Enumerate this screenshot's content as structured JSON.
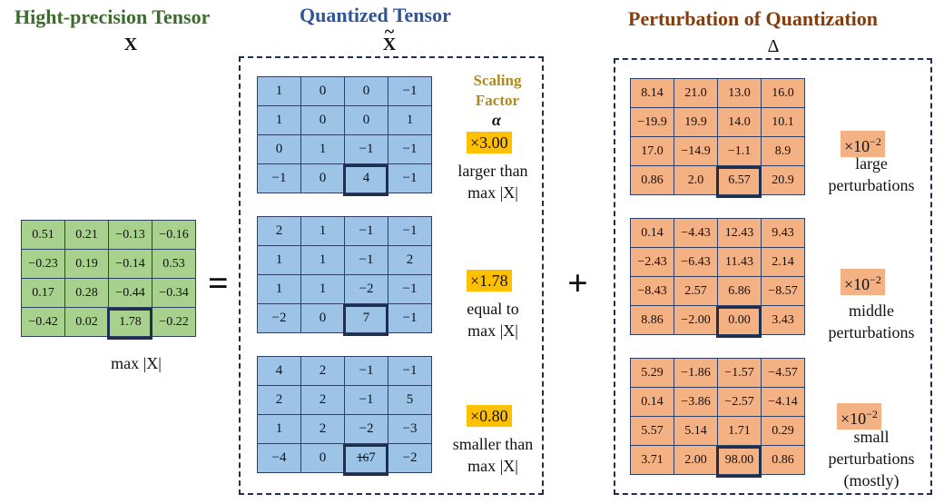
{
  "titles": {
    "high_precision": "Hight-precision Tensor",
    "high_symbol": "X",
    "quantized": "Quantized Tensor",
    "quantized_symbol": "X",
    "quantized_tilde": "~",
    "perturbation": "Perturbation of Quantization",
    "perturbation_symbol": "Δ"
  },
  "colors": {
    "green_title": "#3d6b2d",
    "blue_title": "#2f5597",
    "orange_title": "#843c0c",
    "green_cell": "#a8d18d",
    "blue_cell": "#9dc3e6",
    "orange_cell": "#f4b183",
    "highlight_badge": "#ffc000"
  },
  "operators": {
    "equals": "=",
    "plus": "+"
  },
  "high_precision_matrix": [
    [
      "0.51",
      "0.21",
      "−0.13",
      "−0.16"
    ],
    [
      "−0.23",
      "0.19",
      "−0.14",
      "0.53"
    ],
    [
      "0.17",
      "0.28",
      "−0.44",
      "−0.34"
    ],
    [
      "−0.42",
      "0.02",
      "1.78",
      "−0.22"
    ]
  ],
  "max_label": "max |X|",
  "scaling_header": {
    "line1": "Scaling",
    "line2": "Factor",
    "symbol": "α"
  },
  "quantized_cases": [
    {
      "matrix": [
        [
          "1",
          "0",
          "0",
          "−1"
        ],
        [
          "1",
          "0",
          "0",
          "1"
        ],
        [
          "0",
          "1",
          "−1",
          "−1"
        ],
        [
          "−1",
          "0",
          "4",
          "−1"
        ]
      ],
      "factor": "×3.00",
      "desc_line1": "larger than",
      "desc_line2": "max |X|"
    },
    {
      "matrix": [
        [
          "2",
          "1",
          "−1",
          "−1"
        ],
        [
          "1",
          "1",
          "−1",
          "2"
        ],
        [
          "1",
          "1",
          "−2",
          "−1"
        ],
        [
          "−2",
          "0",
          "7",
          "−1"
        ]
      ],
      "factor": "×1.78",
      "desc_line1": "equal to",
      "desc_line2": "max |X|"
    },
    {
      "matrix": [
        [
          "4",
          "2",
          "−1",
          "−1"
        ],
        [
          "2",
          "2",
          "−1",
          "5"
        ],
        [
          "1",
          "2",
          "−2",
          "−3"
        ],
        [
          "−4",
          "0",
          "7",
          "−2"
        ]
      ],
      "struck_value": "16",
      "factor": "×0.80",
      "desc_line1": "smaller than",
      "desc_line2": "max |X|"
    }
  ],
  "perturbation_cases": [
    {
      "matrix": [
        [
          "8.14",
          "21.0",
          "13.0",
          "16.0"
        ],
        [
          "−19.9",
          "19.9",
          "14.0",
          "10.1"
        ],
        [
          "17.0",
          "−14.9",
          "−1.1",
          "8.9"
        ],
        [
          "0.86",
          "2.0",
          "6.57",
          "20.9"
        ]
      ],
      "scale": "×10",
      "scale_exp": "−2",
      "desc_line1": "large",
      "desc_line2": "perturbations",
      "desc_line3": ""
    },
    {
      "matrix": [
        [
          "0.14",
          "−4.43",
          "12.43",
          "9.43"
        ],
        [
          "−2.43",
          "−6.43",
          "11.43",
          "2.14"
        ],
        [
          "−8.43",
          "2.57",
          "6.86",
          "−8.57"
        ],
        [
          "8.86",
          "−2.00",
          "0.00",
          "3.43"
        ]
      ],
      "scale": "×10",
      "scale_exp": "−2",
      "desc_line1": "middle",
      "desc_line2": "perturbations",
      "desc_line3": ""
    },
    {
      "matrix": [
        [
          "5.29",
          "−1.86",
          "−1.57",
          "−4.57"
        ],
        [
          "0.14",
          "−3.86",
          "−2.57",
          "−4.14"
        ],
        [
          "5.57",
          "5.14",
          "1.71",
          "0.29"
        ],
        [
          "3.71",
          "2.00",
          "98.00",
          "0.86"
        ]
      ],
      "scale": "×10",
      "scale_exp": "−2",
      "desc_line1": "small",
      "desc_line2": "perturbations",
      "desc_line3": "(mostly)"
    }
  ]
}
